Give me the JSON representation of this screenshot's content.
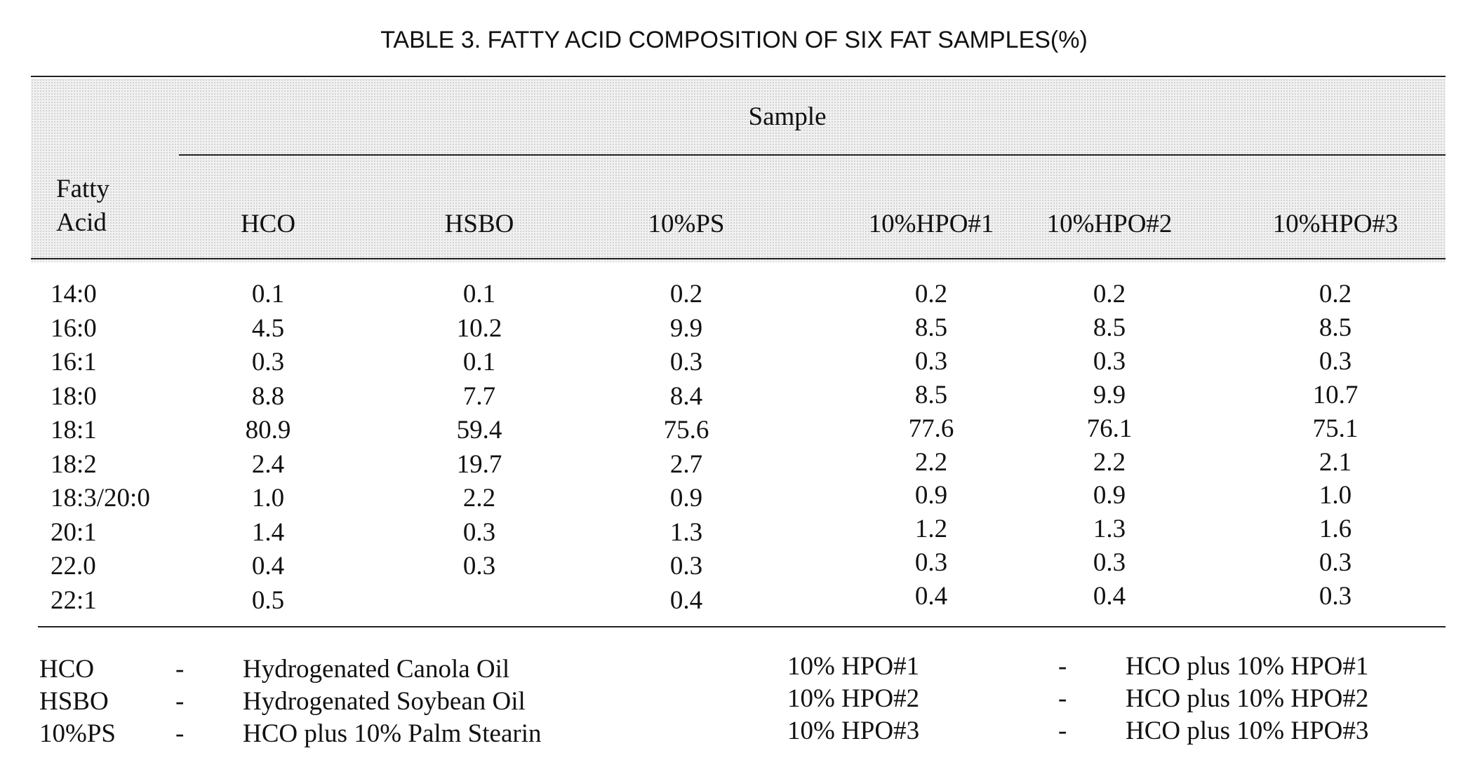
{
  "title": "TABLE 3. FATTY ACID COMPOSITION OF SIX FAT SAMPLES(%)",
  "table": {
    "row_header": "Fatty Acid",
    "group_header": "Sample",
    "columns": [
      "HCO",
      "HSBO",
      "10%PS",
      "10%HPO#1",
      "10%HPO#2",
      "10%HPO#3"
    ],
    "rows": [
      [
        "14:0",
        "0.1",
        "0.1",
        "0.2",
        "0.2",
        "0.2",
        "0.2"
      ],
      [
        "16:0",
        "4.5",
        "10.2",
        "9.9",
        "8.5",
        "8.5",
        "8.5"
      ],
      [
        "16:1",
        "0.3",
        "0.1",
        "0.3",
        "0.3",
        "0.3",
        "0.3"
      ],
      [
        "18:0",
        "8.8",
        "7.7",
        "8.4",
        "8.5",
        "9.9",
        "10.7"
      ],
      [
        "18:1",
        "80.9",
        "59.4",
        "75.6",
        "77.6",
        "76.1",
        "75.1"
      ],
      [
        "18:2",
        "2.4",
        "19.7",
        "2.7",
        "2.2",
        "2.2",
        "2.1"
      ],
      [
        "18:3/20:0",
        "1.0",
        "2.2",
        "0.9",
        "0.9",
        "0.9",
        "1.0"
      ],
      [
        "20:1",
        "1.4",
        "0.3",
        "1.3",
        "1.2",
        "1.3",
        "1.6"
      ],
      [
        "22.0",
        "0.4",
        "0.3",
        "0.3",
        "0.3",
        "0.3",
        "0.3"
      ],
      [
        "22:1",
        "0.5",
        null,
        "0.4",
        "0.4",
        "0.4",
        "0.3"
      ]
    ]
  },
  "legend": [
    {
      "abbr": "HCO",
      "sep": "-",
      "text": "Hydrogenated Canola Oil"
    },
    {
      "abbr": "HSBO",
      "sep": "-",
      "text": "Hydrogenated Soybean Oil"
    },
    {
      "abbr": "10%PS",
      "sep": "-",
      "text": "HCO plus 10% Palm Stearin"
    },
    {
      "abbr": "10% HPO#1",
      "sep": "-",
      "text": "HCO plus 10% HPO#1"
    },
    {
      "abbr": "10% HPO#2",
      "sep": "-",
      "text": "HCO plus 10% HPO#2"
    },
    {
      "abbr": "10% HPO#3",
      "sep": "-",
      "text": "HCO plus 10% HPO#3"
    }
  ]
}
